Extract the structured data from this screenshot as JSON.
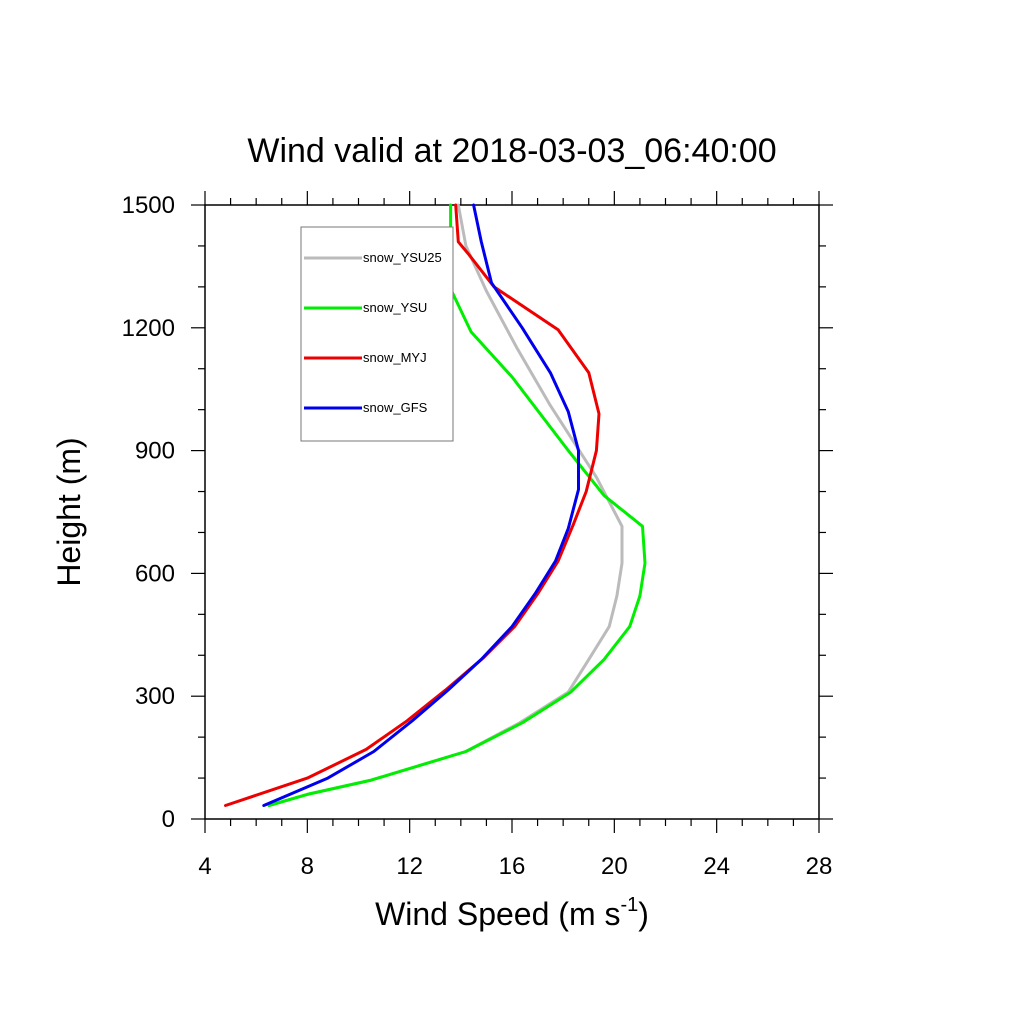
{
  "chart_data": {
    "type": "line",
    "title": "Wind valid at 2018-03-03_06:40:00",
    "xlabel_main": "Wind Speed (m s",
    "xlabel_sup": "-1",
    "xlabel_close": ")",
    "ylabel": "Height (m)",
    "xlim": [
      4,
      28
    ],
    "ylim": [
      0,
      1500
    ],
    "xticks": [
      4,
      8,
      12,
      16,
      20,
      24,
      28
    ],
    "yticks": [
      0,
      300,
      600,
      900,
      1200,
      1500
    ],
    "x_minor_step": 1,
    "y_minor_step": 100,
    "legend_position": "top-left",
    "series": [
      {
        "name": "snow_YSU25",
        "color": "#bbbbbb",
        "points": [
          [
            6.5,
            33
          ],
          [
            8,
            60
          ],
          [
            10.5,
            95
          ],
          [
            14.2,
            165
          ],
          [
            16.3,
            235
          ],
          [
            18.2,
            310
          ],
          [
            19,
            390
          ],
          [
            19.8,
            470
          ],
          [
            20.1,
            545
          ],
          [
            20.3,
            625
          ],
          [
            20.3,
            715
          ],
          [
            19.3,
            835
          ],
          [
            17.5,
            1010
          ],
          [
            16.2,
            1150
          ],
          [
            15,
            1290
          ],
          [
            14.2,
            1400
          ],
          [
            13.9,
            1500
          ]
        ]
      },
      {
        "name": "snow_YSU",
        "color": "#00ee00",
        "points": [
          [
            6.5,
            33
          ],
          [
            8,
            60
          ],
          [
            10.5,
            95
          ],
          [
            14.2,
            165
          ],
          [
            16.4,
            235
          ],
          [
            18.3,
            310
          ],
          [
            19.6,
            390
          ],
          [
            20.6,
            470
          ],
          [
            21,
            545
          ],
          [
            21.2,
            625
          ],
          [
            21.1,
            715
          ],
          [
            19.6,
            790
          ],
          [
            18.2,
            900
          ],
          [
            16,
            1080
          ],
          [
            14.4,
            1190
          ],
          [
            13.6,
            1295
          ],
          [
            13.6,
            1500
          ]
        ]
      },
      {
        "name": "snow_MYJ",
        "color": "#ee0000",
        "points": [
          [
            4.8,
            33
          ],
          [
            8,
            100
          ],
          [
            10.3,
            170
          ],
          [
            11.9,
            240
          ],
          [
            13.4,
            315
          ],
          [
            14.9,
            395
          ],
          [
            16.1,
            470
          ],
          [
            17,
            550
          ],
          [
            17.8,
            630
          ],
          [
            18.4,
            720
          ],
          [
            18.9,
            800
          ],
          [
            19.3,
            900
          ],
          [
            19.4,
            990
          ],
          [
            19,
            1090
          ],
          [
            17.8,
            1195
          ],
          [
            15.3,
            1300
          ],
          [
            14.3,
            1380
          ],
          [
            13.9,
            1410
          ],
          [
            13.8,
            1500
          ]
        ]
      },
      {
        "name": "snow_GFS",
        "color": "#0000ee",
        "points": [
          [
            6.3,
            33
          ],
          [
            8.8,
            100
          ],
          [
            10.6,
            165
          ],
          [
            12.1,
            240
          ],
          [
            13.5,
            315
          ],
          [
            14.8,
            390
          ],
          [
            16,
            470
          ],
          [
            16.9,
            550
          ],
          [
            17.7,
            630
          ],
          [
            18.2,
            710
          ],
          [
            18.6,
            805
          ],
          [
            18.6,
            900
          ],
          [
            18.2,
            995
          ],
          [
            17.5,
            1090
          ],
          [
            16.4,
            1200
          ],
          [
            15.2,
            1310
          ],
          [
            14.8,
            1410
          ],
          [
            14.5,
            1500
          ]
        ]
      }
    ]
  }
}
